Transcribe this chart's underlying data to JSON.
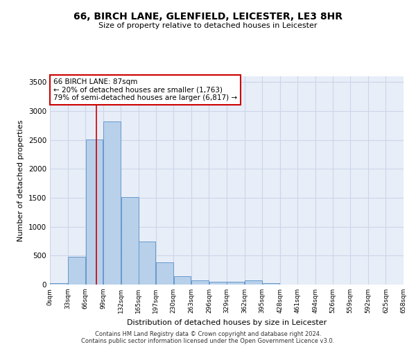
{
  "title": "66, BIRCH LANE, GLENFIELD, LEICESTER, LE3 8HR",
  "subtitle": "Size of property relative to detached houses in Leicester",
  "xlabel": "Distribution of detached houses by size in Leicester",
  "ylabel": "Number of detached properties",
  "bar_color": "#b8d0ea",
  "bar_edge_color": "#6699cc",
  "grid_color": "#ccd5e8",
  "background_color": "#e8eef8",
  "annotation_box_color": "#cc0000",
  "property_line_color": "#cc0000",
  "property_value": 87,
  "annotation_line1": "66 BIRCH LANE: 87sqm",
  "annotation_line2": "← 20% of detached houses are smaller (1,763)",
  "annotation_line3": "79% of semi-detached houses are larger (6,817) →",
  "footnote1": "Contains HM Land Registry data © Crown copyright and database right 2024.",
  "footnote2": "Contains public sector information licensed under the Open Government Licence v3.0.",
  "bin_edges": [
    0,
    33,
    66,
    99,
    132,
    165,
    197,
    230,
    263,
    296,
    329,
    362,
    395,
    428,
    461,
    494,
    526,
    559,
    592,
    625,
    658
  ],
  "bar_heights": [
    30,
    480,
    2510,
    2820,
    1510,
    750,
    380,
    140,
    75,
    50,
    50,
    70,
    25,
    0,
    0,
    0,
    0,
    0,
    0,
    0
  ],
  "ylim": [
    0,
    3600
  ],
  "yticks": [
    0,
    500,
    1000,
    1500,
    2000,
    2500,
    3000,
    3500
  ],
  "tick_labels": [
    "0sqm",
    "33sqm",
    "66sqm",
    "99sqm",
    "132sqm",
    "165sqm",
    "197sqm",
    "230sqm",
    "263sqm",
    "296sqm",
    "329sqm",
    "362sqm",
    "395sqm",
    "428sqm",
    "461sqm",
    "494sqm",
    "526sqm",
    "559sqm",
    "592sqm",
    "625sqm",
    "658sqm"
  ]
}
